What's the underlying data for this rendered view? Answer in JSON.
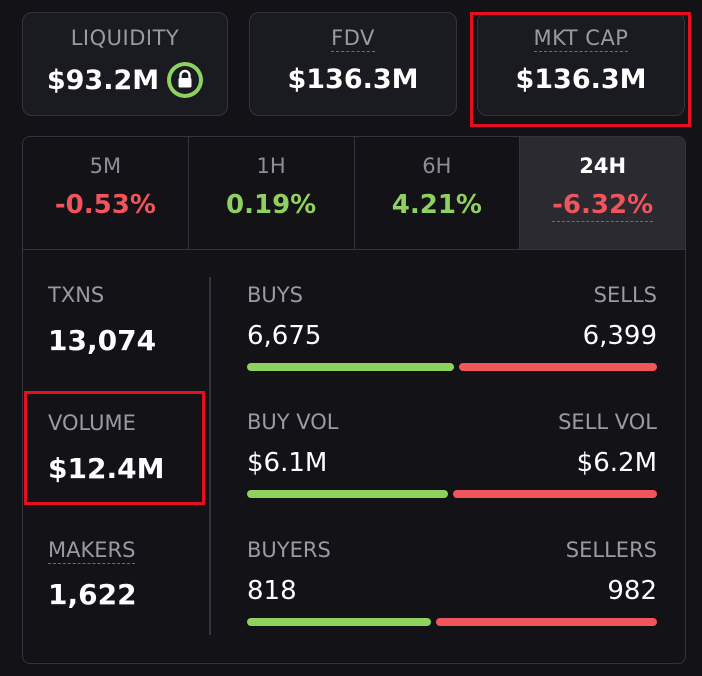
{
  "stats": {
    "liquidity": {
      "label": "LIQUIDITY",
      "value": "$93.2M",
      "icon": "lock-icon"
    },
    "fdv": {
      "label": "FDV",
      "value": "$136.3M"
    },
    "mkt_cap": {
      "label": "MKT CAP",
      "value": "$136.3M"
    }
  },
  "tabs": [
    {
      "label": "5M",
      "value": "-0.53%",
      "trend": "negative"
    },
    {
      "label": "1H",
      "value": "0.19%",
      "trend": "positive"
    },
    {
      "label": "6H",
      "value": "4.21%",
      "trend": "positive"
    },
    {
      "label": "24H",
      "value": "-6.32%",
      "trend": "negative",
      "active": true
    }
  ],
  "metrics": {
    "txns": {
      "label": "TXNS",
      "value": "13,074"
    },
    "volume": {
      "label": "VOLUME",
      "value": "$12.4M"
    },
    "makers": {
      "label": "MAKERS",
      "value": "1,622"
    }
  },
  "splits": [
    {
      "left_label": "BUYS",
      "right_label": "SELLS",
      "left_value": "6,675",
      "right_value": "6,399",
      "buy_fraction": 0.511
    },
    {
      "left_label": "BUY VOL",
      "right_label": "SELL VOL",
      "left_value": "$6.1M",
      "right_value": "$6.2M",
      "buy_fraction": 0.496
    },
    {
      "left_label": "BUYERS",
      "right_label": "SELLERS",
      "left_value": "818",
      "right_value": "982",
      "buy_fraction": 0.454
    }
  ],
  "colors": {
    "positive": "#8fd15e",
    "negative": "#f2545b",
    "highlight": "#e60e1f",
    "background": "#131217",
    "card": "#1a1a21",
    "border": "#34343e"
  }
}
